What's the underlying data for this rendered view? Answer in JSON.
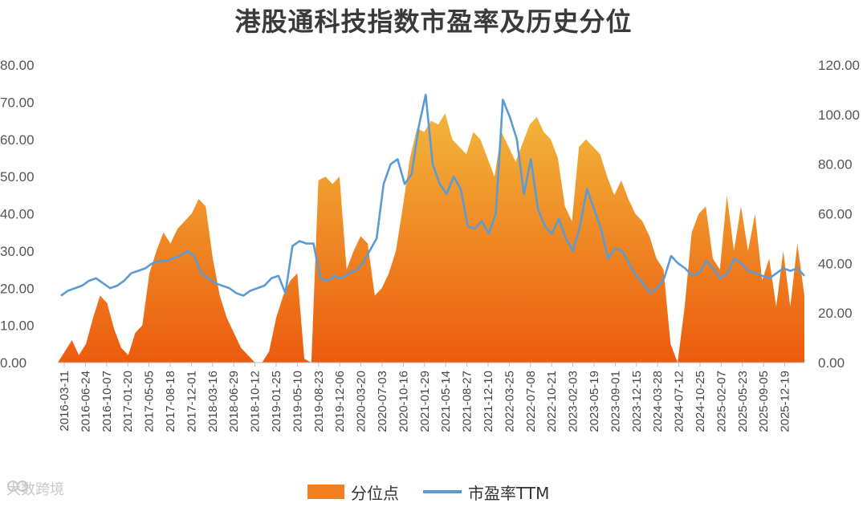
{
  "title": "港股通科技指数市盈率及历史分位",
  "watermark": "大数跨境",
  "colors": {
    "area_top": "#f2b53a",
    "area_bottom": "#ec5b0f",
    "line": "#5b9bd5",
    "text": "#333333"
  },
  "chart_data": {
    "type": "area",
    "title": "港股通科技指数市盈率及历史分位",
    "x_tick_labels": [
      "2016-03-11",
      "2016-06-24",
      "2016-10-07",
      "2017-01-20",
      "2017-05-05",
      "2017-08-18",
      "2017-12-01",
      "2018-03-16",
      "2018-06-29",
      "2018-10-12",
      "2019-01-25",
      "2019-05-10",
      "2019-08-23",
      "2019-12-06",
      "2020-03-20",
      "2020-07-03",
      "2020-10-16",
      "2021-01-29",
      "2021-05-14",
      "2021-08-27",
      "2021-12-10",
      "2022-03-25",
      "2022-07-08",
      "2022-10-21",
      "2023-02-03",
      "2023-05-19",
      "2023-09-01",
      "2023-12-15",
      "2024-03-28",
      "2024-07-12",
      "2024-10-25",
      "2025-02-07",
      "2025-05-23",
      "2025-09-05",
      "2025-12-19"
    ],
    "y_left": {
      "ticks": [
        "0.00",
        "10.00",
        "20.00",
        "30.00",
        "40.00",
        "50.00",
        "60.00",
        "70.00",
        "80.00"
      ],
      "range": [
        0,
        80
      ]
    },
    "y_right": {
      "ticks": [
        "0.00",
        "20.00",
        "40.00",
        "60.00",
        "80.00",
        "100.00",
        "120.00"
      ],
      "range": [
        0,
        120
      ]
    },
    "legend_position": "bottom",
    "grid": false,
    "series": [
      {
        "name": "分位点",
        "axis": "left",
        "type": "area",
        "values": [
          0,
          3,
          6,
          2,
          5,
          12,
          18,
          16,
          9,
          4,
          2,
          8,
          10,
          24,
          30,
          35,
          32,
          36,
          38,
          40,
          44,
          42,
          28,
          18,
          12,
          8,
          4,
          2,
          0,
          0,
          3,
          12,
          18,
          22,
          24,
          1,
          0,
          49,
          50,
          48,
          50,
          25,
          30,
          34,
          32,
          18,
          20,
          24,
          30,
          42,
          55,
          63,
          62,
          65,
          64,
          67,
          60,
          58,
          56,
          62,
          60,
          55,
          50,
          62,
          58,
          54,
          59,
          64,
          66,
          62,
          60,
          55,
          42,
          38,
          58,
          60,
          58,
          56,
          50,
          45,
          49,
          44,
          40,
          38,
          34,
          28,
          25,
          5,
          0,
          15,
          35,
          40,
          42,
          28,
          25,
          45,
          30,
          42,
          30,
          40,
          22,
          28,
          15,
          30,
          15,
          32,
          18
        ]
      },
      {
        "name": "市盈率TTM",
        "axis": "right",
        "type": "line",
        "values": [
          27,
          29,
          30,
          31,
          33,
          34,
          32,
          30,
          31,
          33,
          36,
          37,
          38,
          40,
          41,
          41,
          42,
          43,
          45,
          43,
          36,
          34,
          32,
          31,
          30,
          28,
          27,
          29,
          30,
          31,
          34,
          35,
          28,
          47,
          49,
          48,
          48,
          34,
          33,
          35,
          34,
          36,
          37,
          40,
          45,
          50,
          72,
          80,
          82,
          72,
          76,
          95,
          108,
          80,
          72,
          68,
          75,
          70,
          55,
          54,
          57,
          52,
          60,
          106,
          99,
          90,
          68,
          82,
          62,
          55,
          52,
          58,
          50,
          45,
          55,
          70,
          62,
          54,
          42,
          46,
          45,
          40,
          35,
          32,
          28,
          30,
          34,
          43,
          40,
          38,
          35,
          36,
          41,
          38,
          34,
          36,
          42,
          40,
          37,
          36,
          35,
          34,
          36,
          38,
          37,
          38,
          35
        ]
      }
    ]
  }
}
